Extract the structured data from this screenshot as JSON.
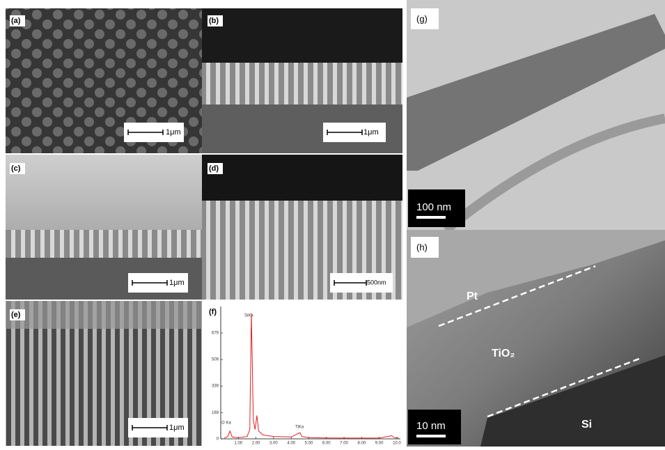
{
  "panels": [
    {
      "label": "(a)",
      "scale_bar": "1μm"
    },
    {
      "label": "(b)",
      "scale_bar": "1μm"
    },
    {
      "label": "(c)",
      "scale_bar": "1μm"
    },
    {
      "label": "(d)",
      "scale_bar": "500nm"
    },
    {
      "label": "(e)",
      "scale_bar": "1μm"
    },
    {
      "label": "(f)"
    },
    {
      "label": "(g)",
      "scale_bar": "100 nm"
    },
    {
      "label": "(h)",
      "scale_bar": "10 nm",
      "annotations": [
        "Pt",
        "TiO₂",
        "Si"
      ]
    }
  ],
  "chart_data": {
    "type": "line",
    "color": "#e02020",
    "annotations": [
      "O Ka",
      "SiKa",
      "TiKa"
    ],
    "x": [
      0.2,
      0.4,
      0.52,
      0.65,
      0.9,
      1.2,
      1.5,
      1.65,
      1.74,
      1.85,
      1.95,
      2.05,
      2.15,
      2.4,
      3.0,
      4.0,
      4.5,
      4.6,
      5.0,
      6.0,
      7.0,
      8.0,
      9.0,
      9.7,
      9.85,
      10.1
    ],
    "values": [
      5,
      15,
      50,
      12,
      8,
      10,
      15,
      60,
      805,
      120,
      60,
      150,
      50,
      25,
      15,
      12,
      40,
      15,
      8,
      6,
      5,
      5,
      5,
      20,
      8,
      5
    ],
    "xlim": [
      0,
      10.2
    ],
    "ylim": [
      0,
      849
    ],
    "xticks": [
      {
        "value": 1,
        "label": "1.00"
      },
      {
        "value": 2,
        "label": "2.00"
      },
      {
        "value": 3,
        "label": "3.00"
      },
      {
        "value": 4,
        "label": "4.00"
      },
      {
        "value": 5,
        "label": "5.00"
      },
      {
        "value": 6,
        "label": "6.00"
      },
      {
        "value": 7,
        "label": "7.00"
      },
      {
        "value": 8,
        "label": "8.00"
      },
      {
        "value": 9,
        "label": "9.00"
      },
      {
        "value": 10,
        "label": "10.0"
      }
    ],
    "yticks": [
      0,
      169,
      339,
      509,
      679
    ]
  }
}
